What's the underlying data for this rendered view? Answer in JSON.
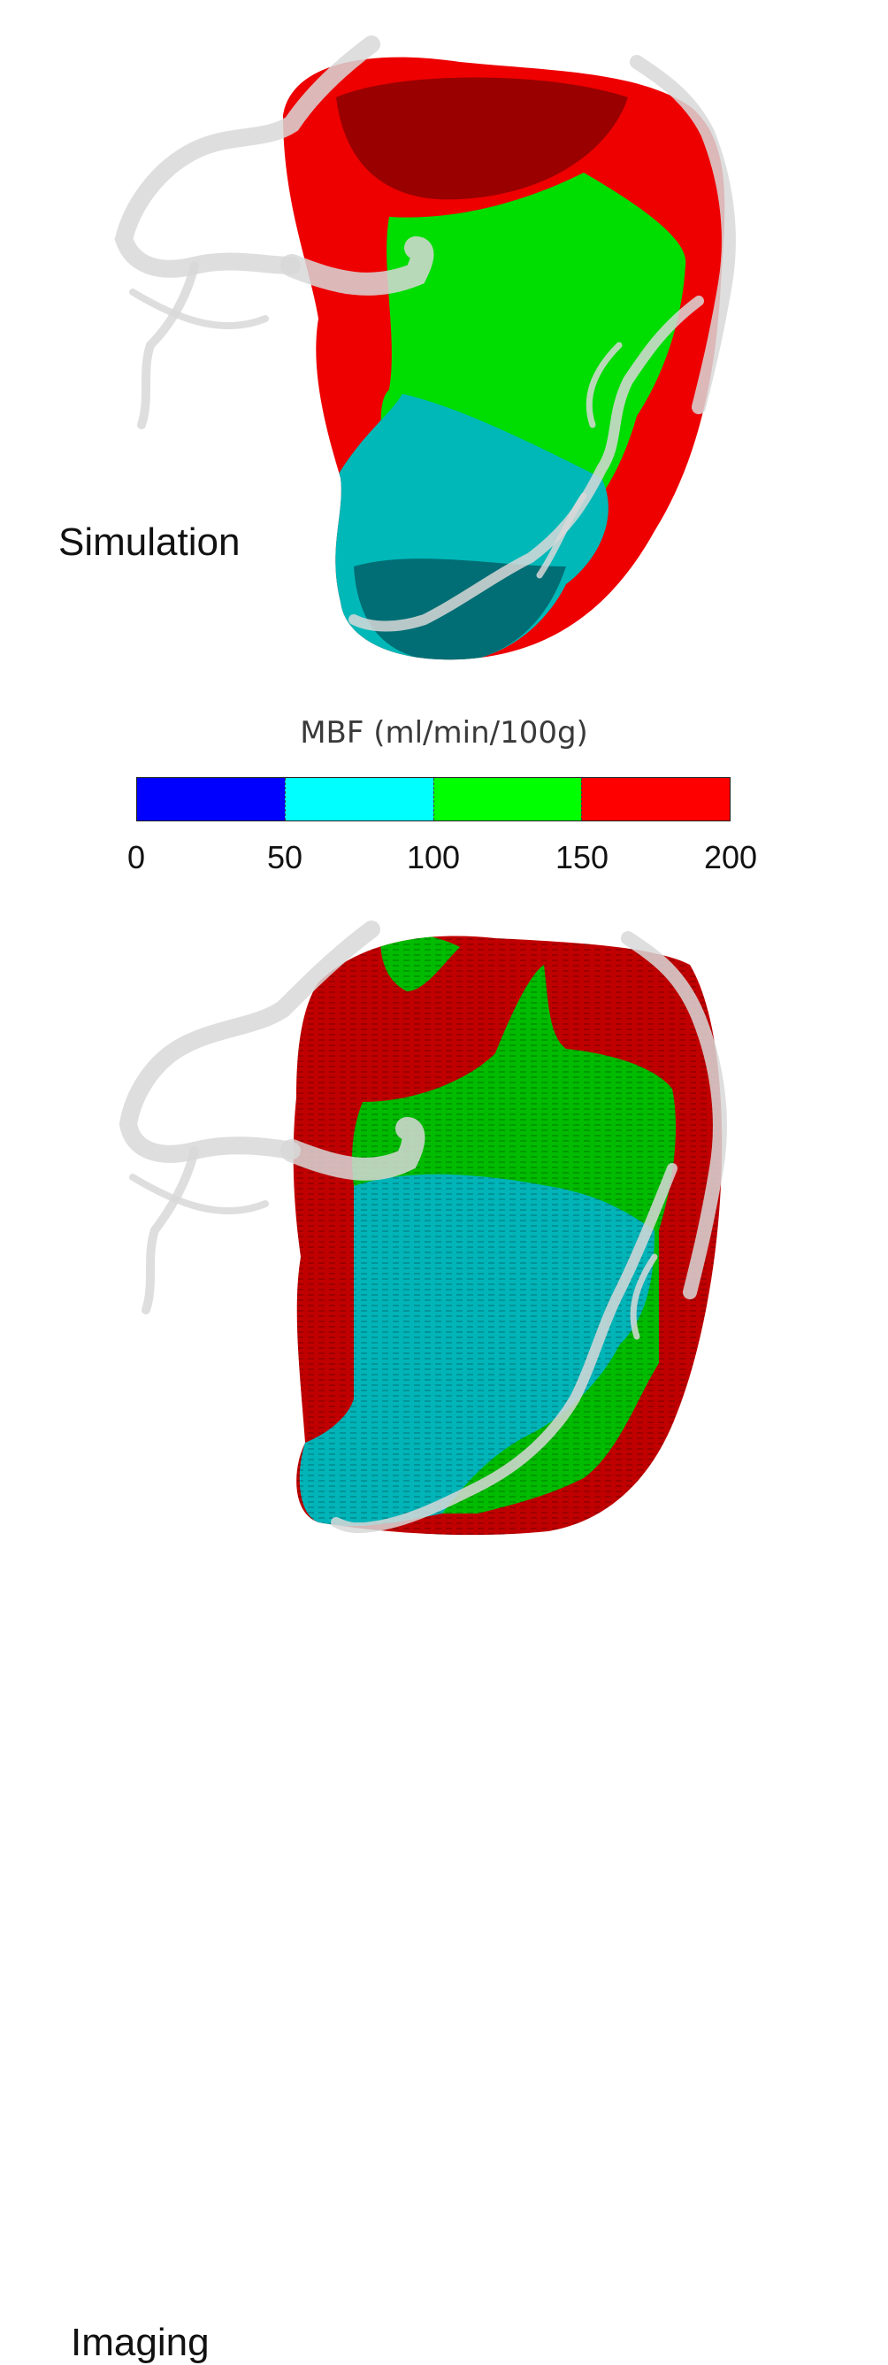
{
  "labels": {
    "simulation": "Simulation",
    "imaging": "Imaging"
  },
  "colorbar": {
    "title": "MBF (ml/min/100g)",
    "ticks": [
      "0",
      "50",
      "100",
      "150",
      "200"
    ],
    "colors": [
      "#0000ff",
      "#00ffff",
      "#00ff00",
      "#ff0000"
    ]
  },
  "region_colors": {
    "simulation": {
      "high": "#ee0000",
      "high_dark": "#9a0000",
      "mid": "#00dd00",
      "low": "#00b8b8",
      "low_dark": "#006e74"
    },
    "imaging": {
      "high": "#c00000",
      "mid": "#00bb00",
      "low": "#00b4b8"
    },
    "vessel": "#d8d8d8"
  }
}
